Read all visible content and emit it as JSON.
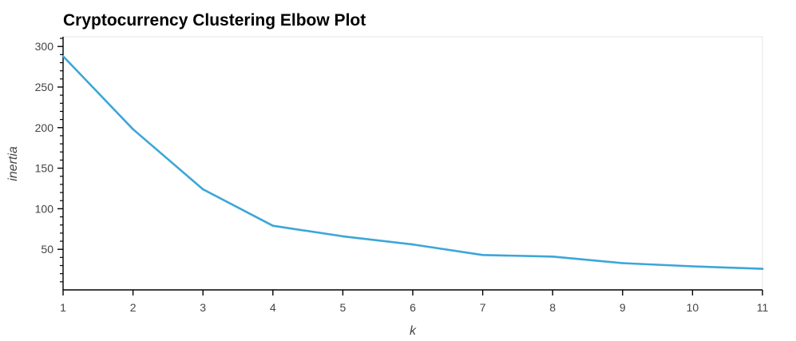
{
  "chart_data": {
    "type": "line",
    "title": "Cryptocurrency Clustering Elbow Plot",
    "xlabel": "k",
    "ylabel": "inertia",
    "x": [
      1,
      2,
      3,
      4,
      5,
      6,
      7,
      8,
      9,
      10,
      11
    ],
    "series": [
      {
        "values": [
          288,
          198,
          124,
          79,
          66,
          56,
          43,
          41,
          33,
          29,
          26
        ],
        "color": "#3ca6d8"
      }
    ],
    "xlim": [
      1,
      11
    ],
    "ylim": [
      0,
      312
    ],
    "x_ticks": [
      1,
      2,
      3,
      4,
      5,
      6,
      7,
      8,
      9,
      10,
      11
    ],
    "y_ticks": [
      50,
      100,
      150,
      200,
      250,
      300
    ],
    "y_minor_step": 10,
    "grid": false,
    "legend": "none"
  }
}
